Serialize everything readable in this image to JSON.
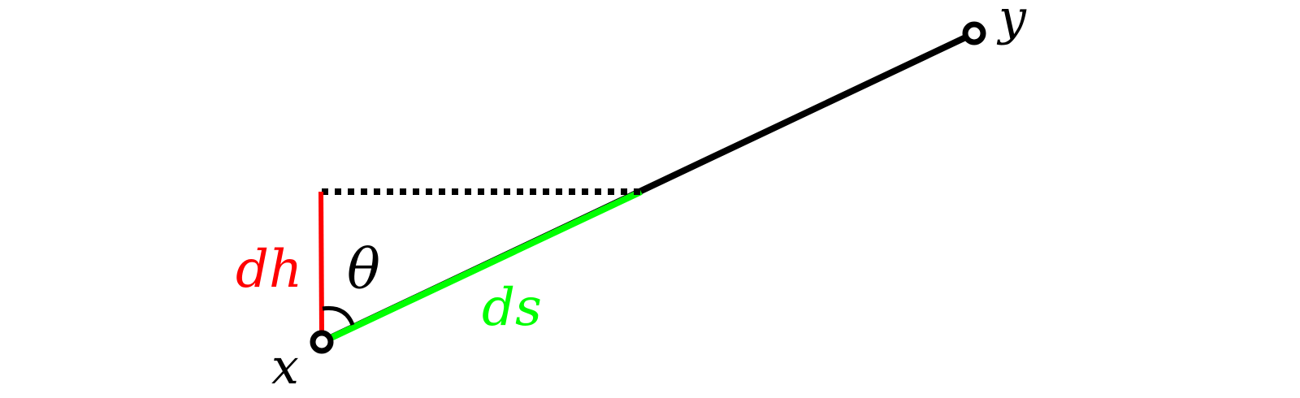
{
  "labels": {
    "point_x": "x",
    "point_y": "y",
    "dh": "dh",
    "theta": "θ",
    "ds": "ds"
  },
  "colors": {
    "main_line": "#000000",
    "dh_segment": "#ff0000",
    "ds_segment": "#00ff00",
    "dotted_line": "#000000",
    "angle_arc": "#000000",
    "points": "#000000"
  }
}
